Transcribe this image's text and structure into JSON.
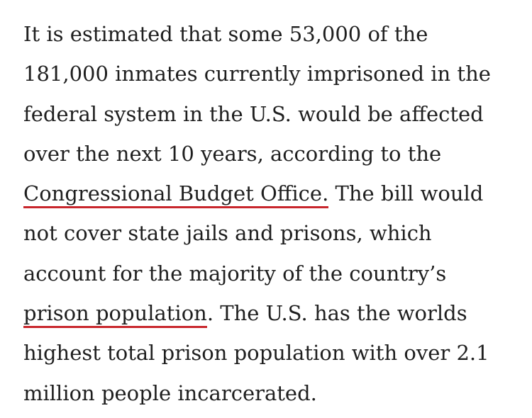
{
  "article": {
    "paragraph": {
      "line1": "It is estimated that some 53,000 of the",
      "line2": "181,000 inmates currently imprisoned in the",
      "line3": "federal system in the U.S. would be affected",
      "line4": "over the next 10 years, according to the",
      "link_cbo": "Congressional Budget Office.",
      "line5_after": " The bill would",
      "line6": "not cover state jails and prisons, which",
      "line7": "account for the majority of the country’s",
      "link_prison_population": "prison population",
      "line8_after": ". The U.S. has the worlds",
      "line9": "highest total prison population with over 2.1",
      "line10": "million people incarcerated."
    },
    "link_underline_color": "#c8262c",
    "text_color": "#1f1f1f"
  }
}
